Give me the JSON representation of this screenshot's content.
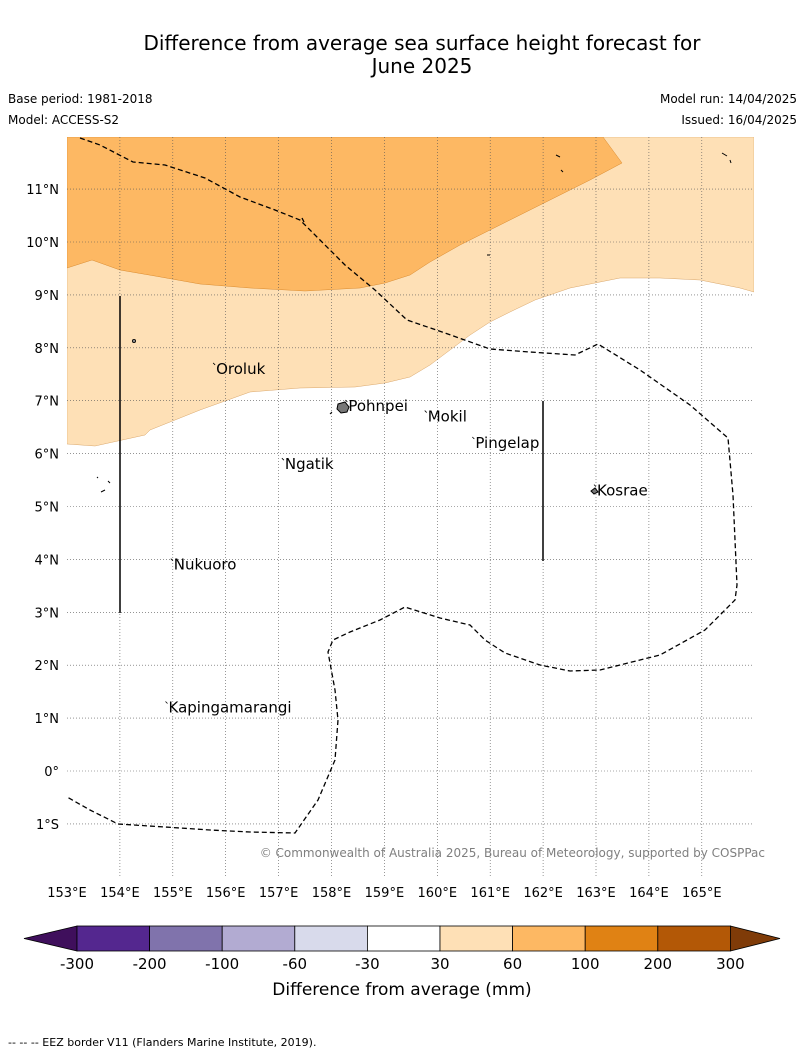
{
  "header": {
    "title_line1": "Difference from average sea surface height forecast for",
    "title_line2": "June 2025",
    "base_period": "Base period: 1981-2018",
    "model": "Model: ACCESS-S2",
    "model_run": "Model run: 14/04/2025",
    "issued": "Issued: 16/04/2025"
  },
  "map": {
    "lon_range": [
      153,
      166
    ],
    "lat_range": [
      -2,
      12
    ],
    "lon_ticks": [
      "153°E",
      "154°E",
      "155°E",
      "156°E",
      "157°E",
      "158°E",
      "159°E",
      "160°E",
      "161°E",
      "162°E",
      "163°E",
      "164°E",
      "165°E"
    ],
    "lat_ticks": [
      "11°N",
      "10°N",
      "9°N",
      "8°N",
      "7°N",
      "6°N",
      "5°N",
      "4°N",
      "3°N",
      "2°N",
      "1°N",
      "0°",
      "1°S"
    ],
    "places": [
      {
        "name": "Oroluk",
        "lon": 155.8,
        "lat": 7.6
      },
      {
        "name": "Pohnpei",
        "lon": 158.3,
        "lat": 6.9
      },
      {
        "name": "Mokil",
        "lon": 159.8,
        "lat": 6.7
      },
      {
        "name": "Pingelap",
        "lon": 160.7,
        "lat": 6.2
      },
      {
        "name": "Ngatik",
        "lon": 157.1,
        "lat": 5.8
      },
      {
        "name": "Kosrae",
        "lon": 163.0,
        "lat": 5.3
      },
      {
        "name": "Nukuoro",
        "lon": 155.0,
        "lat": 3.9
      },
      {
        "name": "Kapingamarangi",
        "lon": 154.9,
        "lat": 1.2
      }
    ],
    "copyright": "© Commonwealth of Australia 2025, Bureau of Meteorology, supported by COSPPac"
  },
  "colorbar": {
    "label": "Difference from average (mm)",
    "ticks": [
      "-300",
      "-200",
      "-100",
      "-60",
      "-30",
      "30",
      "60",
      "100",
      "200",
      "300"
    ],
    "colors": [
      "#3f0f5c",
      "#54278f",
      "#8073ac",
      "#b2abd2",
      "#d8daeb",
      "#ffffff",
      "#fee0b6",
      "#fdb863",
      "#e08214",
      "#b35806",
      "#7f3b08"
    ]
  },
  "footer": {
    "legend_note": "--  --  -- EEZ border V11 (Flanders Marine Institute, 2019)."
  }
}
